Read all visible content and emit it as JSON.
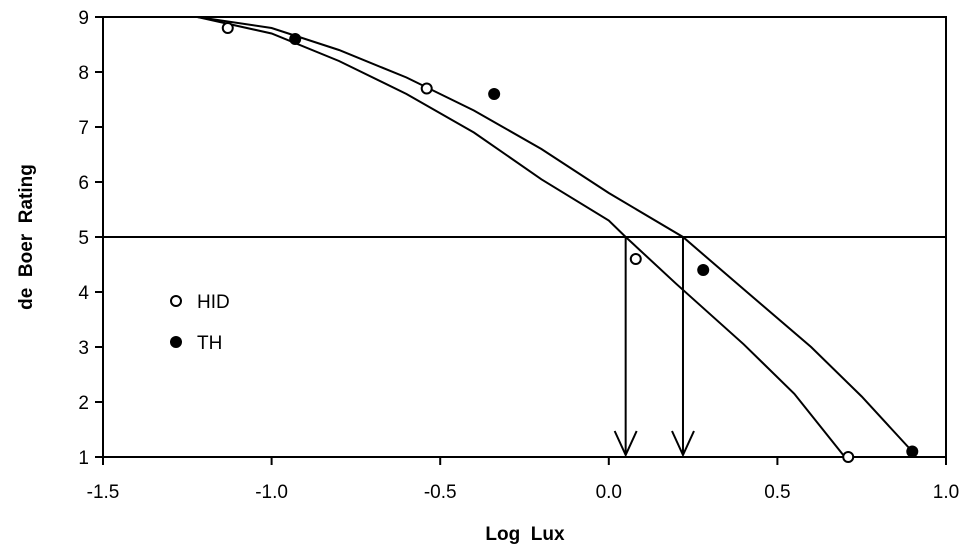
{
  "chart_data": {
    "type": "scatter",
    "title": "",
    "xlabel": "Log  Lux",
    "ylabel": "de  Boer  Rating",
    "xlim": [
      -1.5,
      1.0
    ],
    "ylim": [
      1,
      9
    ],
    "x_ticks": [
      -1.5,
      -1.0,
      -0.5,
      0.0,
      0.5,
      1.0
    ],
    "x_tick_labels": [
      "-1.5",
      "-1.0",
      "-0.5",
      "0.0",
      "0.5",
      "1.0"
    ],
    "y_ticks": [
      1,
      2,
      3,
      4,
      5,
      6,
      7,
      8,
      9
    ],
    "y_tick_labels": [
      "1",
      "2",
      "3",
      "4",
      "5",
      "6",
      "7",
      "8",
      "9"
    ],
    "grid": false,
    "legend_position": "left",
    "reference_line_y": 5,
    "series": [
      {
        "name": "HID",
        "marker": "open-circle",
        "points": [
          {
            "x": -1.13,
            "y": 8.8
          },
          {
            "x": -0.54,
            "y": 7.7
          },
          {
            "x": 0.08,
            "y": 4.6
          },
          {
            "x": 0.71,
            "y": 1.0
          }
        ],
        "fit_curve": [
          {
            "x": -1.22,
            "y": 9.0
          },
          {
            "x": -1.0,
            "y": 8.7
          },
          {
            "x": -0.8,
            "y": 8.2
          },
          {
            "x": -0.6,
            "y": 7.6
          },
          {
            "x": -0.4,
            "y": 6.9
          },
          {
            "x": -0.2,
            "y": 6.05
          },
          {
            "x": 0.0,
            "y": 5.3
          },
          {
            "x": 0.05,
            "y": 5.0
          },
          {
            "x": 0.2,
            "y": 4.15
          },
          {
            "x": 0.4,
            "y": 3.05
          },
          {
            "x": 0.55,
            "y": 2.15
          },
          {
            "x": 0.7,
            "y": 1.0
          }
        ],
        "arrow_x": 0.05
      },
      {
        "name": "TH",
        "marker": "filled-circle",
        "points": [
          {
            "x": -0.93,
            "y": 8.6
          },
          {
            "x": -0.34,
            "y": 7.6
          },
          {
            "x": 0.28,
            "y": 4.4
          },
          {
            "x": 0.9,
            "y": 1.1
          }
        ],
        "fit_curve": [
          {
            "x": -1.22,
            "y": 9.0
          },
          {
            "x": -1.0,
            "y": 8.8
          },
          {
            "x": -0.8,
            "y": 8.4
          },
          {
            "x": -0.6,
            "y": 7.9
          },
          {
            "x": -0.4,
            "y": 7.3
          },
          {
            "x": -0.2,
            "y": 6.6
          },
          {
            "x": 0.0,
            "y": 5.8
          },
          {
            "x": 0.22,
            "y": 5.0
          },
          {
            "x": 0.4,
            "y": 4.05
          },
          {
            "x": 0.6,
            "y": 3.0
          },
          {
            "x": 0.75,
            "y": 2.1
          },
          {
            "x": 0.9,
            "y": 1.1
          }
        ],
        "arrow_x": 0.22
      }
    ]
  }
}
